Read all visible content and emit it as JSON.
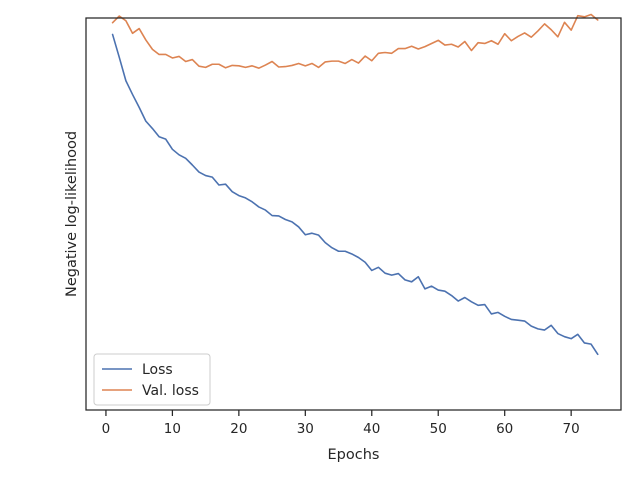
{
  "chart_data": {
    "type": "line",
    "title": "",
    "xlabel": "Epochs",
    "ylabel": "Negative log-likelihood",
    "xlim": [
      -3,
      77.5
    ],
    "ylim": [
      0.0,
      1.0
    ],
    "x_ticks": [
      0,
      10,
      20,
      30,
      40,
      50,
      60,
      70
    ],
    "y_ticks_shown": false,
    "grid": false,
    "legend_position": "lower-left",
    "series": [
      {
        "name": "Loss",
        "color": "#4c72b0",
        "x": [
          1,
          2,
          3,
          4,
          5,
          6,
          7,
          8,
          9,
          10,
          11,
          12,
          13,
          14,
          15,
          16,
          17,
          18,
          19,
          20,
          21,
          22,
          23,
          24,
          25,
          26,
          27,
          28,
          29,
          30,
          31,
          32,
          33,
          34,
          35,
          36,
          37,
          38,
          39,
          40,
          41,
          42,
          43,
          44,
          45,
          46,
          47,
          48,
          49,
          50,
          51,
          52,
          53,
          54,
          55,
          56,
          57,
          58,
          59,
          60,
          61,
          62,
          63,
          64,
          65,
          66,
          67,
          68,
          69,
          70,
          71,
          72,
          73,
          74
        ],
        "values": [
          0.958,
          0.9,
          0.84,
          0.805,
          0.772,
          0.737,
          0.718,
          0.697,
          0.691,
          0.665,
          0.651,
          0.642,
          0.625,
          0.607,
          0.598,
          0.594,
          0.574,
          0.576,
          0.557,
          0.547,
          0.541,
          0.531,
          0.518,
          0.51,
          0.496,
          0.495,
          0.486,
          0.48,
          0.467,
          0.447,
          0.451,
          0.446,
          0.427,
          0.414,
          0.405,
          0.405,
          0.398,
          0.389,
          0.377,
          0.356,
          0.364,
          0.349,
          0.344,
          0.348,
          0.332,
          0.327,
          0.34,
          0.309,
          0.316,
          0.306,
          0.303,
          0.292,
          0.278,
          0.287,
          0.276,
          0.267,
          0.269,
          0.245,
          0.249,
          0.239,
          0.231,
          0.229,
          0.227,
          0.214,
          0.207,
          0.204,
          0.216,
          0.195,
          0.187,
          0.182,
          0.193,
          0.171,
          0.168,
          0.142
        ]
      },
      {
        "name": "Val. loss",
        "color": "#dd8452",
        "x": [
          1,
          2,
          3,
          4,
          5,
          6,
          7,
          8,
          9,
          10,
          11,
          12,
          13,
          14,
          15,
          16,
          17,
          18,
          19,
          20,
          21,
          22,
          23,
          24,
          25,
          26,
          27,
          28,
          29,
          30,
          31,
          32,
          33,
          34,
          35,
          36,
          37,
          38,
          39,
          40,
          41,
          42,
          43,
          44,
          45,
          46,
          47,
          48,
          49,
          50,
          51,
          52,
          53,
          54,
          55,
          56,
          57,
          58,
          59,
          60,
          61,
          62,
          63,
          64,
          65,
          66,
          67,
          68,
          69,
          70,
          71,
          72,
          73,
          74
        ],
        "values": [
          0.988,
          1.005,
          0.993,
          0.961,
          0.973,
          0.944,
          0.92,
          0.907,
          0.907,
          0.898,
          0.902,
          0.889,
          0.894,
          0.877,
          0.874,
          0.882,
          0.882,
          0.873,
          0.879,
          0.878,
          0.874,
          0.878,
          0.872,
          0.88,
          0.889,
          0.875,
          0.876,
          0.879,
          0.884,
          0.878,
          0.884,
          0.874,
          0.888,
          0.89,
          0.89,
          0.884,
          0.894,
          0.885,
          0.903,
          0.891,
          0.91,
          0.912,
          0.91,
          0.922,
          0.922,
          0.928,
          0.921,
          0.927,
          0.935,
          0.943,
          0.931,
          0.933,
          0.926,
          0.94,
          0.917,
          0.937,
          0.935,
          0.942,
          0.933,
          0.96,
          0.942,
          0.953,
          0.962,
          0.951,
          0.967,
          0.985,
          0.97,
          0.952,
          0.989,
          0.969,
          1.006,
          1.003,
          1.009,
          0.995
        ]
      }
    ]
  }
}
